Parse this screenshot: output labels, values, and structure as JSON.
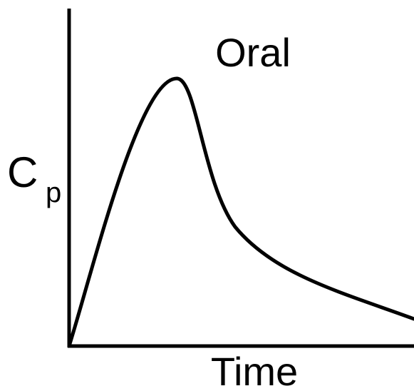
{
  "title": "Oral",
  "y_label": {
    "main": "C",
    "subscript": "p"
  },
  "x_label": "Time"
}
